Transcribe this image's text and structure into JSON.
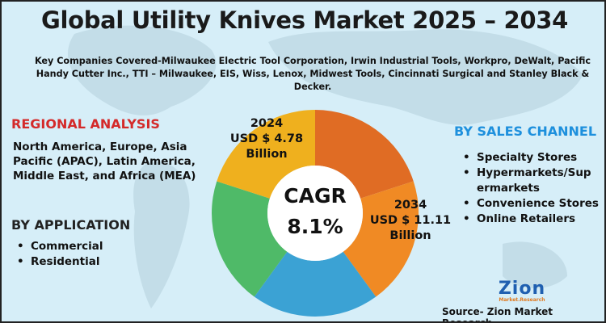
{
  "title": "Global Utility Knives Market 2025 – 2034",
  "companies": "Key Companies Covered-Milwaukee Electric Tool Corporation, Irwin Industrial Tools, Workpro, DeWalt, Pacific Handy Cutter Inc., TTI – Milwaukee, EIS, Wiss, Lenox, Midwest Tools, Cincinnati Surgical and Stanley Black & Decker.",
  "regional": {
    "heading": "REGIONAL ANALYSIS",
    "text": "North America, Europe, Asia Pacific (APAC), Latin America, Middle East, and Africa (MEA)"
  },
  "application": {
    "heading": "BY APPLICATION",
    "items": [
      "Commercial",
      "Residential"
    ]
  },
  "sales": {
    "heading": "BY SALES CHANNEL",
    "items": [
      "Specialty Stores",
      "Hypermarkets/Supermarkets",
      "Convenience Stores",
      "Online Retailers"
    ]
  },
  "donut": {
    "colors": [
      "#e06c24",
      "#f08a24",
      "#3ba2d4",
      "#4fba68",
      "#efb01e"
    ],
    "label_2024": {
      "year": "2024",
      "value": "USD $ 4.78",
      "unit": "Billion"
    },
    "label_2034": {
      "year": "2034",
      "value": "USD $ 11.11",
      "unit": "Billion"
    },
    "cagr_label": "CAGR",
    "cagr_value": "8.1%"
  },
  "logo": {
    "name": "Zion",
    "sub": "Market.Research"
  },
  "source": "Source- Zion Market Research"
}
